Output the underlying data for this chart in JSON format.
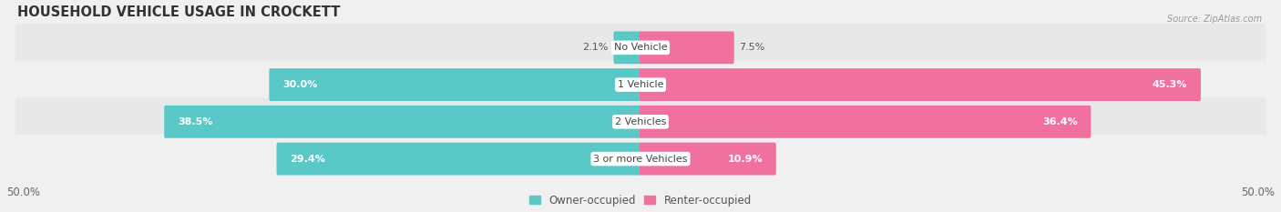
{
  "title": "HOUSEHOLD VEHICLE USAGE IN CROCKETT",
  "source": "Source: ZipAtlas.com",
  "categories": [
    "No Vehicle",
    "1 Vehicle",
    "2 Vehicles",
    "3 or more Vehicles"
  ],
  "owner_values": [
    2.1,
    30.0,
    38.5,
    29.4
  ],
  "renter_values": [
    7.5,
    45.3,
    36.4,
    10.9
  ],
  "owner_color": "#5BC8C8",
  "renter_color": "#F070A0",
  "owner_label": "Owner-occupied",
  "renter_label": "Renter-occupied",
  "xlim": 50.0,
  "bar_height": 0.72,
  "title_fontsize": 10.5,
  "value_fontsize": 8.0,
  "cat_fontsize": 8.0,
  "legend_fontsize": 8.5,
  "axis_fontsize": 8.5,
  "fig_bg": "#f0f0f0",
  "row_bg_even": "#e8e8e8",
  "row_bg_odd": "#f0f0f0"
}
